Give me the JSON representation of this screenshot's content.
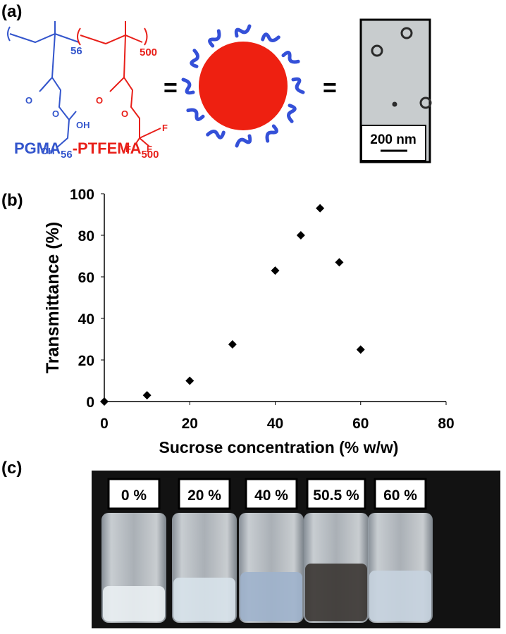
{
  "panel_a": {
    "label": "(a)",
    "scheme_subscripts": [
      "56",
      "500"
    ],
    "atoms": [
      "O",
      "O",
      "OH",
      "OH",
      "O",
      "O",
      "F",
      "F",
      "F"
    ],
    "name": {
      "block1": "PGMA",
      "block1_sub": "56",
      "block2": "-PTFEMA",
      "block2_sub": "500"
    },
    "equals": [
      "=",
      "="
    ],
    "scale_bar": "200 nm"
  },
  "panel_b": {
    "label": "(b)"
  },
  "chart_data": {
    "type": "scatter",
    "xlabel": "Sucrose concentration (% w/w)",
    "ylabel": "Transmittance (%)",
    "x": [
      0,
      10,
      20,
      30,
      40,
      46,
      50.5,
      55,
      60
    ],
    "values": [
      0,
      3,
      10,
      27.5,
      63,
      80,
      93,
      67,
      25
    ],
    "xlim": [
      0,
      80
    ],
    "xticks": [
      0,
      20,
      40,
      60,
      80
    ],
    "ylim": [
      0,
      100
    ],
    "yticks": [
      0,
      20,
      40,
      60,
      80,
      100
    ],
    "color": "#000000",
    "marker": "diamond"
  },
  "panel_c": {
    "label": "(c)",
    "vial_labels": [
      "0 %",
      "20 %",
      "40 %",
      "50.5 %",
      "60 %"
    ]
  }
}
